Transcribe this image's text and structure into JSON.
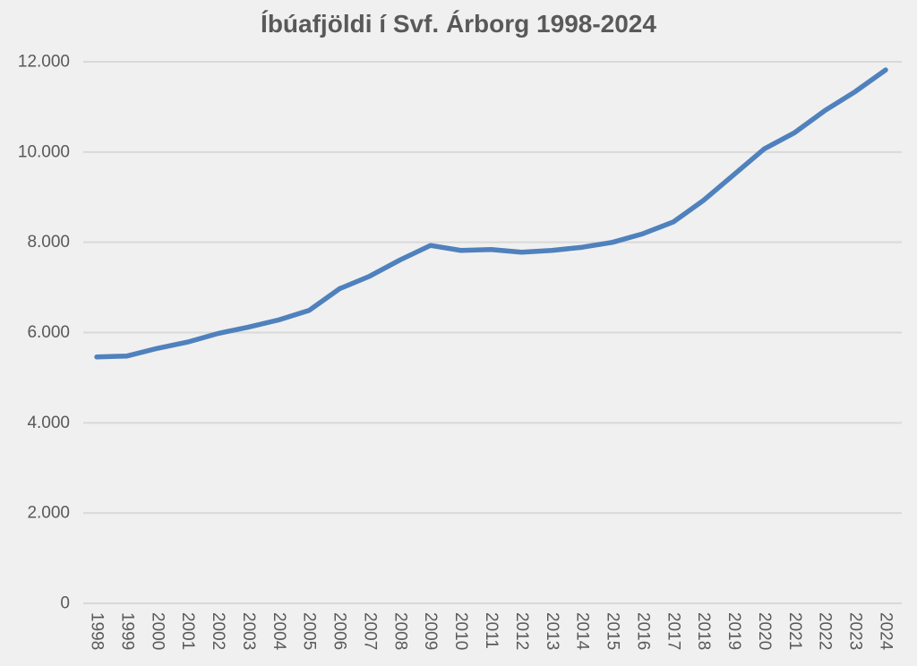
{
  "chart_data": {
    "type": "line",
    "title": "Íbúafjöldi í Svf. Árborg 1998-2024",
    "xlabel": "",
    "ylabel": "",
    "x": [
      "1998",
      "1999",
      "2000",
      "2001",
      "2002",
      "2003",
      "2004",
      "2005",
      "2006",
      "2007",
      "2008",
      "2009",
      "2010",
      "2011",
      "2012",
      "2013",
      "2014",
      "2015",
      "2016",
      "2017",
      "2018",
      "2019",
      "2020",
      "2021",
      "2022",
      "2023",
      "2024"
    ],
    "series": [
      {
        "name": "Íbúafjöldi í Svf. Árborg",
        "values": [
          5460,
          5480,
          5650,
          5790,
          5980,
          6120,
          6280,
          6490,
          6970,
          7250,
          7610,
          7930,
          7820,
          7840,
          7780,
          7820,
          7890,
          8000,
          8190,
          8450,
          8930,
          9500,
          10070,
          10430,
          10920,
          11340,
          11820
        ]
      }
    ],
    "ylim": [
      0,
      12000
    ],
    "yticks": [
      {
        "value": 0,
        "label": "0"
      },
      {
        "value": 2000,
        "label": "2.000"
      },
      {
        "value": 4000,
        "label": "4.000"
      },
      {
        "value": 6000,
        "label": "6.000"
      },
      {
        "value": 8000,
        "label": "8.000"
      },
      {
        "value": 10000,
        "label": "10.000"
      },
      {
        "value": 12000,
        "label": "12.000"
      }
    ],
    "grid": true,
    "legend": false,
    "x_label_rotation_deg": 90,
    "colors": {
      "line": "#4f81bd",
      "grid": "#d9d9d9",
      "text": "#595959",
      "title_text": "#595959",
      "background": "#f0f0f0"
    }
  }
}
